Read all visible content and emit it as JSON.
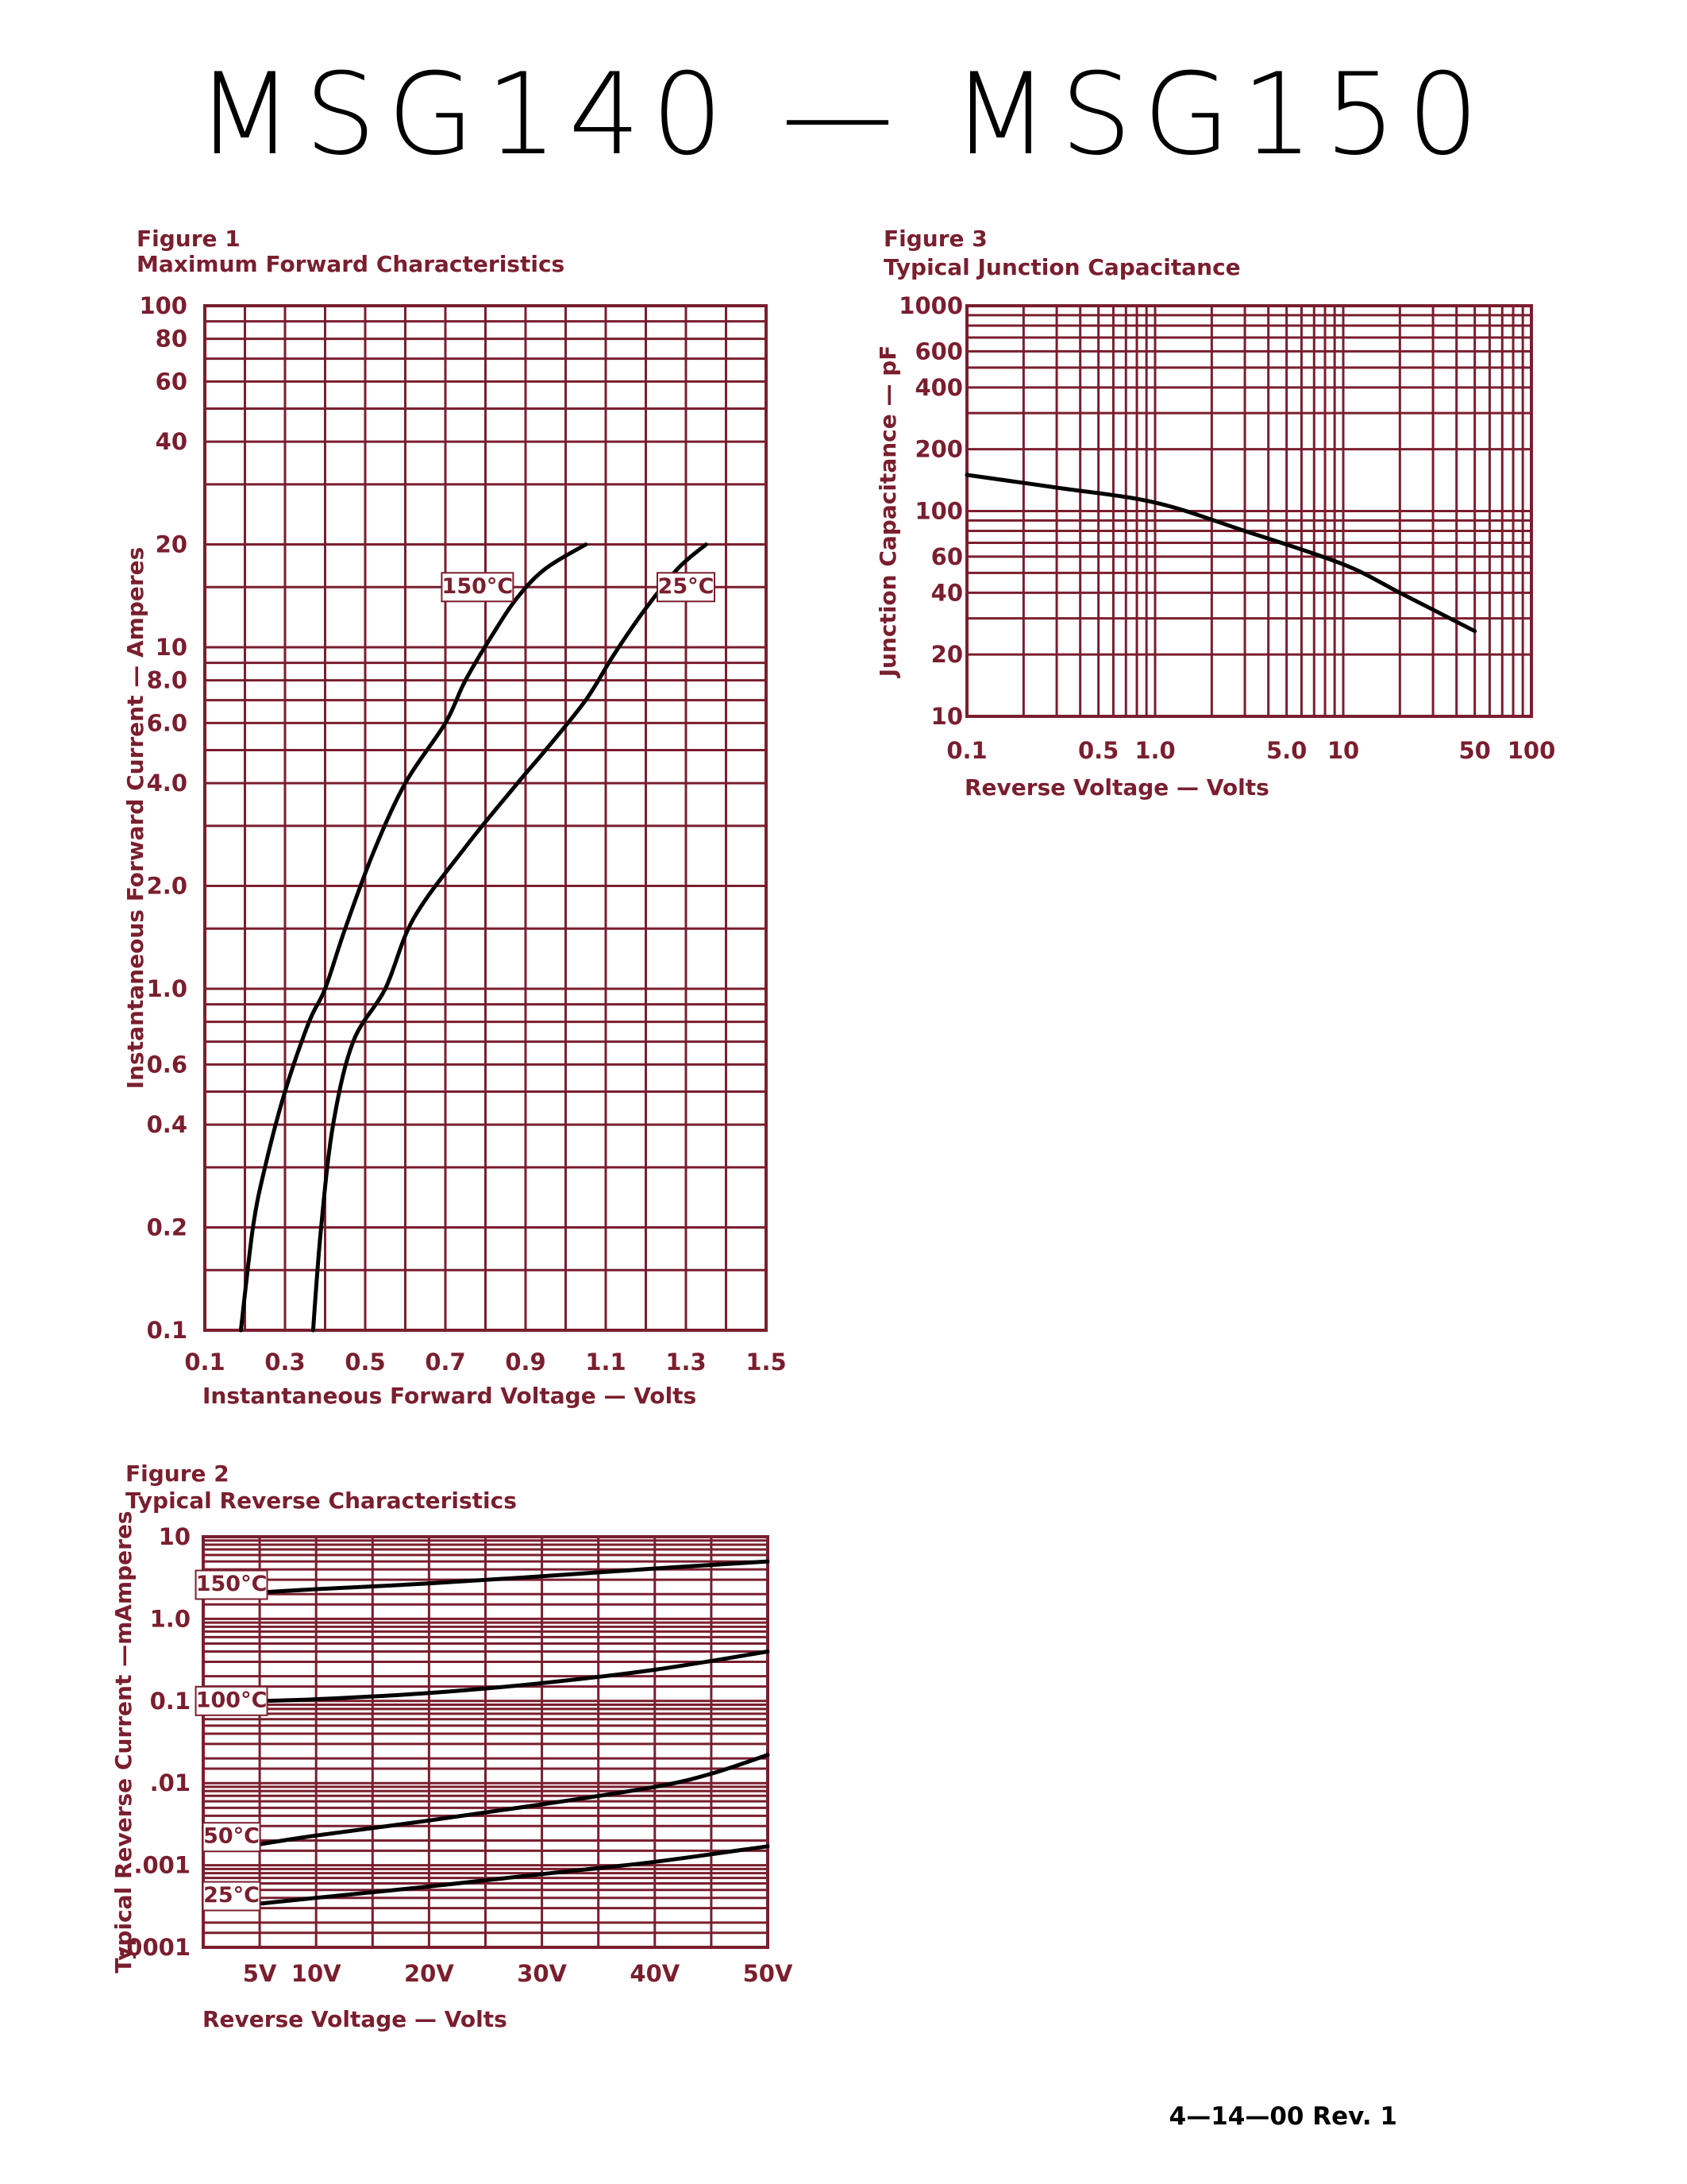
{
  "page": {
    "title": "MSG140  —  MSG150",
    "footer": "4—14—00    Rev. 1",
    "grid_color": "#7a1e2e",
    "text_color": "#7a1e2e",
    "curve_color": "#000000"
  },
  "chart_data": [
    {
      "id": "fig1",
      "type": "line",
      "figure_label": "Figure 1",
      "title": "Maximum Forward Characteristics",
      "xlabel": "Instantaneous Forward Voltage — Volts",
      "ylabel": "Instantaneous Forward Current — Amperes",
      "x_scale": "linear",
      "y_scale": "log",
      "xlim": [
        0.1,
        1.5
      ],
      "ylim": [
        0.1,
        100
      ],
      "grid": true,
      "x_gridlines": [
        0.1,
        0.2,
        0.3,
        0.4,
        0.5,
        0.6,
        0.7,
        0.8,
        0.9,
        1.0,
        1.1,
        1.2,
        1.3,
        1.4,
        1.5
      ],
      "y_gridlines": [
        0.1,
        0.15,
        0.2,
        0.3,
        0.4,
        0.5,
        0.6,
        0.7,
        0.8,
        0.9,
        1,
        1.5,
        2,
        3,
        4,
        5,
        6,
        7,
        8,
        9,
        10,
        15,
        20,
        30,
        40,
        50,
        60,
        70,
        80,
        90,
        100
      ],
      "x_ticks": [
        {
          "value": 0.1,
          "label": "0.1"
        },
        {
          "value": 0.3,
          "label": "0.3"
        },
        {
          "value": 0.5,
          "label": "0.5"
        },
        {
          "value": 0.7,
          "label": "0.7"
        },
        {
          "value": 0.9,
          "label": "0.9"
        },
        {
          "value": 1.1,
          "label": "1.1"
        },
        {
          "value": 1.3,
          "label": "1.3"
        },
        {
          "value": 1.5,
          "label": "1.5"
        }
      ],
      "y_ticks": [
        {
          "value": 100,
          "label": "100"
        },
        {
          "value": 80,
          "label": "80"
        },
        {
          "value": 60,
          "label": "60"
        },
        {
          "value": 40,
          "label": "40"
        },
        {
          "value": 20,
          "label": "20"
        },
        {
          "value": 10,
          "label": "10"
        },
        {
          "value": 8,
          "label": "8.0"
        },
        {
          "value": 6,
          "label": "6.0"
        },
        {
          "value": 4,
          "label": "4.0"
        },
        {
          "value": 2,
          "label": "2.0"
        },
        {
          "value": 1,
          "label": "1.0"
        },
        {
          "value": 0.6,
          "label": "0.6"
        },
        {
          "value": 0.4,
          "label": "0.4"
        },
        {
          "value": 0.2,
          "label": "0.2"
        },
        {
          "value": 0.1,
          "label": "0.1"
        }
      ],
      "series": [
        {
          "name": "150°C",
          "label_at": {
            "x": 0.78,
            "y": 15
          },
          "points": [
            [
              0.19,
              0.1
            ],
            [
              0.22,
              0.2
            ],
            [
              0.25,
              0.3
            ],
            [
              0.3,
              0.5
            ],
            [
              0.36,
              0.8
            ],
            [
              0.4,
              1.0
            ],
            [
              0.45,
              1.5
            ],
            [
              0.52,
              2.5
            ],
            [
              0.6,
              4.0
            ],
            [
              0.7,
              6.0
            ],
            [
              0.75,
              8.0
            ],
            [
              0.82,
              11
            ],
            [
              0.88,
              14
            ],
            [
              0.95,
              17
            ],
            [
              1.05,
              20
            ]
          ]
        },
        {
          "name": "25°C",
          "label_at": {
            "x": 1.3,
            "y": 15
          },
          "points": [
            [
              0.37,
              0.1
            ],
            [
              0.39,
              0.2
            ],
            [
              0.42,
              0.4
            ],
            [
              0.47,
              0.7
            ],
            [
              0.55,
              1.0
            ],
            [
              0.62,
              1.6
            ],
            [
              0.75,
              2.6
            ],
            [
              0.88,
              4.0
            ],
            [
              0.95,
              5.0
            ],
            [
              1.05,
              7.0
            ],
            [
              1.12,
              9.5
            ],
            [
              1.2,
              13
            ],
            [
              1.28,
              17
            ],
            [
              1.35,
              20
            ]
          ]
        }
      ]
    },
    {
      "id": "fig2",
      "type": "line",
      "figure_label": "Figure 2",
      "title": "Typical Reverse Characteristics",
      "xlabel": "Reverse Voltage — Volts",
      "ylabel": "Typical Reverse Current —mAmperes",
      "x_scale": "linear",
      "y_scale": "log",
      "xlim": [
        0,
        50
      ],
      "ylim": [
        0.0001,
        10
      ],
      "grid": true,
      "x_gridlines": [
        0,
        5,
        10,
        15,
        20,
        25,
        30,
        35,
        40,
        45,
        50
      ],
      "y_gridlines_per_decade": [
        1,
        1.5,
        2,
        3,
        4,
        5,
        6,
        7,
        8,
        9
      ],
      "x_ticks": [
        {
          "value": 5,
          "label": "5V"
        },
        {
          "value": 10,
          "label": "10V"
        },
        {
          "value": 20,
          "label": "20V"
        },
        {
          "value": 30,
          "label": "30V"
        },
        {
          "value": 40,
          "label": "40V"
        },
        {
          "value": 50,
          "label": "50V"
        }
      ],
      "y_ticks": [
        {
          "value": 10,
          "label": "10"
        },
        {
          "value": 1,
          "label": "1.0"
        },
        {
          "value": 0.1,
          "label": "0.1"
        },
        {
          "value": 0.01,
          "label": ".01"
        },
        {
          "value": 0.001,
          "label": ".001"
        },
        {
          "value": 0.0001,
          "label": ".0001"
        }
      ],
      "series": [
        {
          "name": "150°C",
          "label_at": {
            "x": 2.5,
            "y": 2.6
          },
          "points": [
            [
              5,
              2.1
            ],
            [
              10,
              2.3
            ],
            [
              20,
              2.7
            ],
            [
              30,
              3.3
            ],
            [
              40,
              4.1
            ],
            [
              50,
              5.0
            ]
          ]
        },
        {
          "name": "100°C",
          "label_at": {
            "x": 2.5,
            "y": 0.1
          },
          "points": [
            [
              5,
              0.1
            ],
            [
              10,
              0.105
            ],
            [
              20,
              0.125
            ],
            [
              30,
              0.165
            ],
            [
              40,
              0.24
            ],
            [
              50,
              0.4
            ]
          ]
        },
        {
          "name": "50°C",
          "label_at": {
            "x": 2.5,
            "y": 0.0022
          },
          "points": [
            [
              5,
              0.0018
            ],
            [
              10,
              0.0023
            ],
            [
              20,
              0.0035
            ],
            [
              30,
              0.0055
            ],
            [
              40,
              0.009
            ],
            [
              45,
              0.013
            ],
            [
              50,
              0.022
            ]
          ]
        },
        {
          "name": "25°C",
          "label_at": {
            "x": 2.5,
            "y": 0.00042
          },
          "points": [
            [
              5,
              0.00034
            ],
            [
              10,
              0.0004
            ],
            [
              20,
              0.00055
            ],
            [
              30,
              0.00078
            ],
            [
              40,
              0.0011
            ],
            [
              50,
              0.0017
            ]
          ]
        }
      ]
    },
    {
      "id": "fig3",
      "type": "line",
      "figure_label": "Figure 3",
      "title": "Typical Junction Capacitance",
      "xlabel": "Reverse Voltage — Volts",
      "ylabel": "Junction Capacitance — pF",
      "x_scale": "log",
      "y_scale": "log",
      "xlim": [
        0.1,
        100
      ],
      "ylim": [
        10,
        1000
      ],
      "grid": true,
      "gridlines_per_decade": [
        1,
        2,
        3,
        4,
        5,
        6,
        7,
        8,
        9
      ],
      "x_ticks": [
        {
          "value": 0.1,
          "label": "0.1"
        },
        {
          "value": 0.5,
          "label": "0.5"
        },
        {
          "value": 1,
          "label": "1.0"
        },
        {
          "value": 5,
          "label": "5.0"
        },
        {
          "value": 10,
          "label": "10"
        },
        {
          "value": 50,
          "label": "50"
        },
        {
          "value": 100,
          "label": "100"
        }
      ],
      "y_ticks": [
        {
          "value": 1000,
          "label": "1000"
        },
        {
          "value": 600,
          "label": "600"
        },
        {
          "value": 400,
          "label": "400"
        },
        {
          "value": 200,
          "label": "200"
        },
        {
          "value": 100,
          "label": "100"
        },
        {
          "value": 60,
          "label": "60"
        },
        {
          "value": 40,
          "label": "40"
        },
        {
          "value": 20,
          "label": "20"
        },
        {
          "value": 10,
          "label": "10"
        }
      ],
      "series": [
        {
          "points": [
            [
              0.1,
              150
            ],
            [
              0.3,
              130
            ],
            [
              1,
              110
            ],
            [
              3,
              80
            ],
            [
              10,
              55
            ],
            [
              20,
              40
            ],
            [
              50,
              26
            ]
          ]
        }
      ]
    }
  ]
}
